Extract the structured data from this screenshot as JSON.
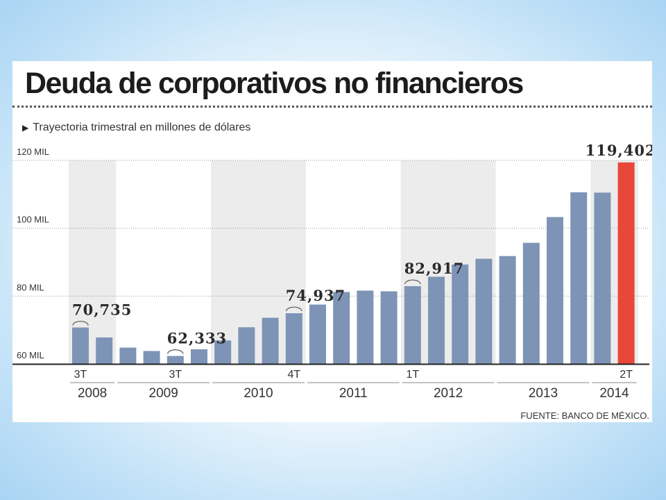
{
  "header": {
    "title": "Deuda de corporativos no financieros",
    "subtitle": "Trayectoria trimestral en millones de dólares"
  },
  "footer": {
    "source": "FUENTE: BANCO DE MÉXICO."
  },
  "colors": {
    "bar": "#7d94b6",
    "highlight": "#e8473a",
    "band": "#ececec",
    "text": "#333333"
  },
  "chart_data": {
    "type": "bar",
    "y_ticks": [
      {
        "value": 60000,
        "label": "60 MIL"
      },
      {
        "value": 80000,
        "label": "80 MIL"
      },
      {
        "value": 100000,
        "label": "100 MIL"
      },
      {
        "value": 120000,
        "label": "120 MIL"
      }
    ],
    "ylim": [
      60000,
      120000
    ],
    "grid": true,
    "values": [
      70735,
      67800,
      64800,
      63800,
      62333,
      64300,
      66900,
      70800,
      73600,
      74937,
      77500,
      81200,
      81600,
      81400,
      82917,
      85700,
      89300,
      91000,
      91800,
      95700,
      103300,
      110600,
      110500,
      119402
    ],
    "highlight_index": 23,
    "years": [
      {
        "label": "2008",
        "start": 0,
        "count": 2
      },
      {
        "label": "2009",
        "start": 2,
        "count": 4
      },
      {
        "label": "2010",
        "start": 6,
        "count": 4
      },
      {
        "label": "2011",
        "start": 10,
        "count": 4
      },
      {
        "label": "2012",
        "start": 14,
        "count": 4
      },
      {
        "label": "2013",
        "start": 18,
        "count": 4
      },
      {
        "label": "2014",
        "start": 22,
        "count": 2
      }
    ],
    "shaded_years": [
      "2008",
      "2010",
      "2012",
      "2014"
    ],
    "annotations": [
      {
        "index": 0,
        "label": "70,735",
        "quarter": "3T"
      },
      {
        "index": 4,
        "label": "62,333",
        "quarter": "3T"
      },
      {
        "index": 9,
        "label": "74,937",
        "quarter": "4T"
      },
      {
        "index": 14,
        "label": "82,917",
        "quarter": "1T"
      },
      {
        "index": 23,
        "label": "119,402",
        "quarter": "2T"
      }
    ]
  }
}
